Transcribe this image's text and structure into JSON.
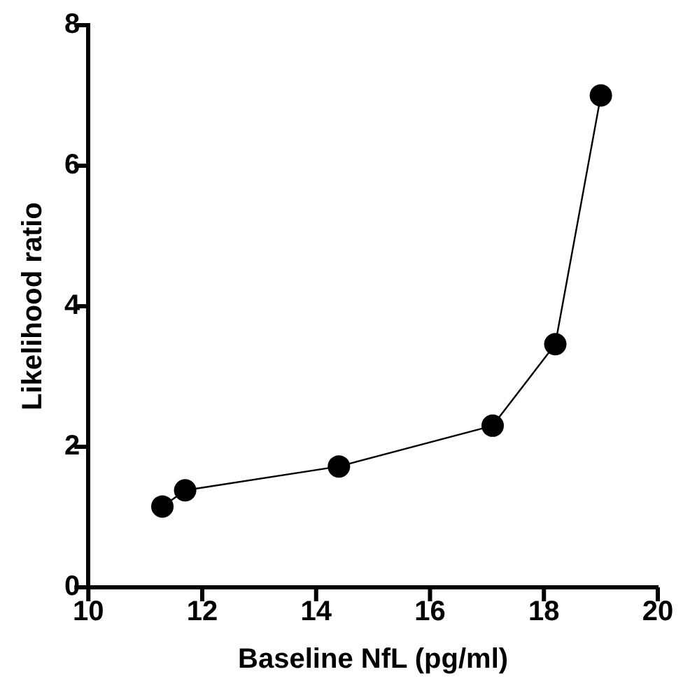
{
  "chart_data": {
    "type": "line",
    "xlabel": "Baseline NfL (pg/ml)",
    "ylabel": "Likelihood ratio",
    "x": [
      11.3,
      11.7,
      14.4,
      17.1,
      18.2,
      19.0
    ],
    "series": [
      {
        "color": "#000000",
        "values": [
          1.15,
          1.38,
          1.72,
          2.3,
          3.46,
          7.0
        ]
      }
    ],
    "xlim": [
      10,
      20
    ],
    "xticks": [
      10,
      12,
      14,
      16,
      18,
      20
    ],
    "ylim": [
      0,
      8
    ],
    "yticks": [
      0,
      2,
      4,
      6,
      8
    ],
    "grid": false,
    "legend": false,
    "marker": "circle",
    "line_style": "solid"
  }
}
